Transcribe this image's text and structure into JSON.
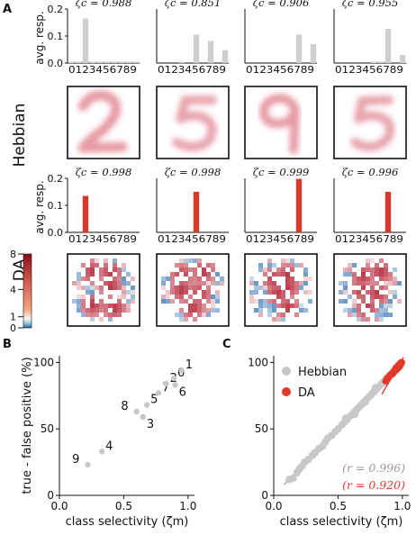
{
  "figure": {
    "panel_a": "A",
    "panel_b": "B",
    "panel_c": "C",
    "row_hebbian": "Hebbian",
    "row_da": "DA"
  },
  "colors": {
    "hebbian_bar": "#cfcfcf",
    "da_bar": "#d73a2c",
    "scatter_grey": "#c8c8c8",
    "scatter_red": "#e3392b",
    "fit_grey": "#9a9a9a",
    "fit_red": "#e3392b",
    "r_grey": "#9a9a9a",
    "r_red": "#e3392b",
    "heat_red": "#b2182b",
    "heat_blue": "#2166ac"
  },
  "chart_data": [
    {
      "type": "bar",
      "name": "hebbian-histograms",
      "ylabel": "avg. resp.",
      "ylim": [
        0,
        0.2
      ],
      "yticks": [
        "0.0",
        "0.1",
        "0.2"
      ],
      "categories": [
        "0",
        "1",
        "2",
        "3",
        "4",
        "5",
        "6",
        "7",
        "8",
        "9"
      ],
      "tick_text": "0123456789",
      "panels": [
        {
          "zeta": "ζc = 0.988",
          "values": [
            0.005,
            0.005,
            0.165,
            0.005,
            0.005,
            0.005,
            0.005,
            0.005,
            0.005,
            0.005
          ]
        },
        {
          "zeta": "ζc = 0.851",
          "values": [
            0.0,
            0.0,
            0.0,
            0.005,
            0.0,
            0.105,
            0.0,
            0.082,
            0.0,
            0.048
          ]
        },
        {
          "zeta": "ζc = 0.906",
          "values": [
            0.0,
            0.0,
            0.0,
            0.0,
            0.0,
            0.0,
            0.0,
            0.105,
            0.0,
            0.07
          ]
        },
        {
          "zeta": "ζc = 0.955",
          "values": [
            0.0,
            0.0,
            0.0,
            0.0,
            0.0,
            0.005,
            0.005,
            0.126,
            0.0,
            0.03
          ]
        }
      ]
    },
    {
      "type": "bar",
      "name": "da-histograms",
      "ylabel": "avg. resp.",
      "ylim": [
        0,
        0.2
      ],
      "yticks": [
        "0.0",
        "0.1",
        "0.2"
      ],
      "categories": [
        "0",
        "1",
        "2",
        "3",
        "4",
        "5",
        "6",
        "7",
        "8",
        "9"
      ],
      "tick_text": "0123456789",
      "panels": [
        {
          "zeta": "ζc = 0.998",
          "values": [
            0,
            0,
            0.135,
            0,
            0,
            0,
            0,
            0,
            0,
            0
          ]
        },
        {
          "zeta": "ζc = 0.998",
          "values": [
            0,
            0,
            0,
            0,
            0,
            0.15,
            0,
            0,
            0,
            0
          ]
        },
        {
          "zeta": "ζc = 0.999",
          "values": [
            0,
            0,
            0,
            0,
            0,
            0,
            0,
            0.198,
            0,
            0
          ]
        },
        {
          "zeta": "ζc = 0.996",
          "values": [
            0,
            0,
            0,
            0,
            0,
            0,
            0,
            0.15,
            0,
            0
          ]
        }
      ]
    },
    {
      "type": "heatmap",
      "name": "colorbar",
      "ticks": [
        "8",
        "4",
        "1",
        "0"
      ],
      "tick_values": [
        8,
        4,
        1,
        0
      ]
    },
    {
      "type": "scatter",
      "name": "panel-b",
      "xlabel": "class selectivity (ζm)",
      "ylabel": "true - false positive (%)",
      "xlim": [
        0.0,
        1.05
      ],
      "ylim": [
        0,
        105
      ],
      "xticks": [
        "0.0",
        "0.5",
        "1.0"
      ],
      "yticks": [
        "0",
        "50",
        "100"
      ],
      "points": [
        {
          "label": "9",
          "x": 0.22,
          "y": 23
        },
        {
          "label": "4",
          "x": 0.33,
          "y": 33
        },
        {
          "label": "8",
          "x": 0.6,
          "y": 63
        },
        {
          "label": "3",
          "x": 0.65,
          "y": 59
        },
        {
          "label": "5",
          "x": 0.68,
          "y": 68
        },
        {
          "label": "7",
          "x": 0.77,
          "y": 77
        },
        {
          "label": "2",
          "x": 0.83,
          "y": 84
        },
        {
          "label": "0",
          "x": 0.89,
          "y": 88
        },
        {
          "label": "6",
          "x": 0.9,
          "y": 83
        },
        {
          "label": "1",
          "x": 0.95,
          "y": 94
        }
      ]
    },
    {
      "type": "scatter",
      "name": "panel-c",
      "xlabel": "class selectivity (ζm)",
      "xlim": [
        0.0,
        1.05
      ],
      "ylim": [
        0,
        105
      ],
      "xticks": [
        "0.0",
        "0.5",
        "1.0"
      ],
      "yticks": [
        "0",
        "50",
        "100"
      ],
      "legend": [
        "Hebbian",
        "DA"
      ],
      "legend_placement": "top-left",
      "r_hebbian": "(r = 0.996)",
      "r_da": "(r = 0.920)",
      "series": [
        {
          "name": "Hebbian",
          "points": [
            [
              0.12,
              12
            ],
            [
              0.15,
              13
            ],
            [
              0.18,
              17
            ],
            [
              0.2,
              20
            ],
            [
              0.22,
              22
            ],
            [
              0.24,
              25
            ],
            [
              0.27,
              27
            ],
            [
              0.3,
              30
            ],
            [
              0.32,
              32
            ],
            [
              0.35,
              35
            ],
            [
              0.38,
              37
            ],
            [
              0.4,
              40
            ],
            [
              0.42,
              43
            ],
            [
              0.45,
              45
            ],
            [
              0.48,
              48
            ],
            [
              0.5,
              50
            ],
            [
              0.53,
              53
            ],
            [
              0.55,
              55
            ],
            [
              0.57,
              57
            ],
            [
              0.6,
              60
            ],
            [
              0.62,
              62
            ],
            [
              0.64,
              64
            ],
            [
              0.66,
              66
            ],
            [
              0.68,
              68
            ],
            [
              0.7,
              70
            ],
            [
              0.72,
              72
            ],
            [
              0.74,
              74
            ],
            [
              0.76,
              76
            ],
            [
              0.78,
              78
            ],
            [
              0.8,
              80
            ],
            [
              0.82,
              82
            ],
            [
              0.84,
              84
            ],
            [
              0.86,
              86
            ],
            [
              0.88,
              88
            ],
            [
              0.9,
              90
            ],
            [
              0.92,
              92
            ],
            [
              0.94,
              94
            ],
            [
              0.96,
              96
            ],
            [
              0.98,
              98
            ],
            [
              0.99,
              99
            ],
            [
              0.56,
              58
            ],
            [
              0.63,
              61
            ],
            [
              0.71,
              70
            ],
            [
              0.79,
              81
            ],
            [
              0.87,
              85
            ]
          ]
        },
        {
          "name": "DA",
          "points": [
            [
              0.87,
              86
            ],
            [
              0.88,
              88
            ],
            [
              0.89,
              88
            ],
            [
              0.9,
              90
            ],
            [
              0.91,
              91
            ],
            [
              0.92,
              91
            ],
            [
              0.93,
              93
            ],
            [
              0.94,
              94
            ],
            [
              0.95,
              94
            ],
            [
              0.96,
              96
            ],
            [
              0.96,
              95
            ],
            [
              0.97,
              97
            ],
            [
              0.97,
              98
            ],
            [
              0.98,
              98
            ],
            [
              0.98,
              99
            ],
            [
              0.99,
              99
            ],
            [
              0.99,
              100
            ],
            [
              0.995,
              100
            ],
            [
              0.93,
              92
            ],
            [
              0.95,
              96
            ],
            [
              0.97,
              96
            ],
            [
              0.98,
              97
            ]
          ]
        }
      ]
    }
  ]
}
